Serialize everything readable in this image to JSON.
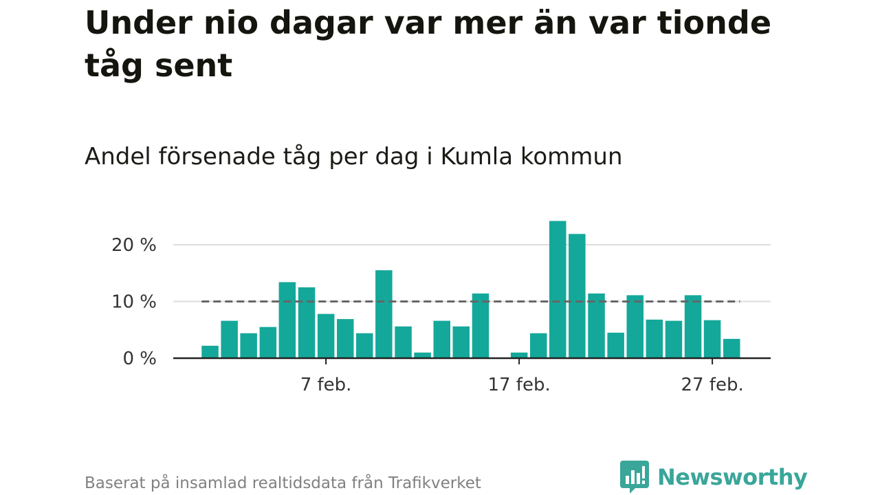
{
  "header": {
    "title": "Under nio dagar var mer än var tionde tåg sent",
    "subtitle": "Andel försenade tåg per dag i Kumla kommun"
  },
  "footer": {
    "source": "Baserat på insamlad realtidsdata från Trafikverket",
    "logo_text": "Newsworthy"
  },
  "colors": {
    "bar": "#14a89a",
    "reference_line": "#666666",
    "grid": "#dddddd",
    "axis": "#222222",
    "logo": "#3aa69a"
  },
  "chart_data": {
    "type": "bar",
    "title": "Andel försenade tåg per dag i Kumla kommun",
    "x_unit": "day of February",
    "categories": [
      1,
      2,
      3,
      4,
      5,
      6,
      7,
      8,
      9,
      10,
      11,
      12,
      13,
      14,
      15,
      16,
      17,
      18,
      19,
      20,
      21,
      22,
      23,
      24,
      25,
      26,
      27,
      28
    ],
    "values": [
      2.2,
      6.6,
      4.4,
      5.5,
      13.4,
      12.5,
      7.8,
      6.9,
      4.4,
      15.5,
      5.6,
      1.0,
      6.6,
      5.6,
      11.4,
      0,
      1.0,
      4.4,
      24.2,
      21.9,
      11.4,
      4.5,
      11.1,
      6.8,
      6.6,
      11.1,
      6.7,
      3.4
    ],
    "x_ticks": [
      {
        "day": 7,
        "label": "7 feb."
      },
      {
        "day": 17,
        "label": "17 feb."
      },
      {
        "day": 27,
        "label": "27 feb."
      }
    ],
    "y_ticks": [
      {
        "value": 0,
        "label": "0 %"
      },
      {
        "value": 10,
        "label": "10 %"
      },
      {
        "value": 20,
        "label": "20 %"
      }
    ],
    "reference_line": {
      "value": 10,
      "style": "dashed"
    },
    "ylim": [
      0,
      25
    ],
    "grid": true,
    "legend": false
  }
}
